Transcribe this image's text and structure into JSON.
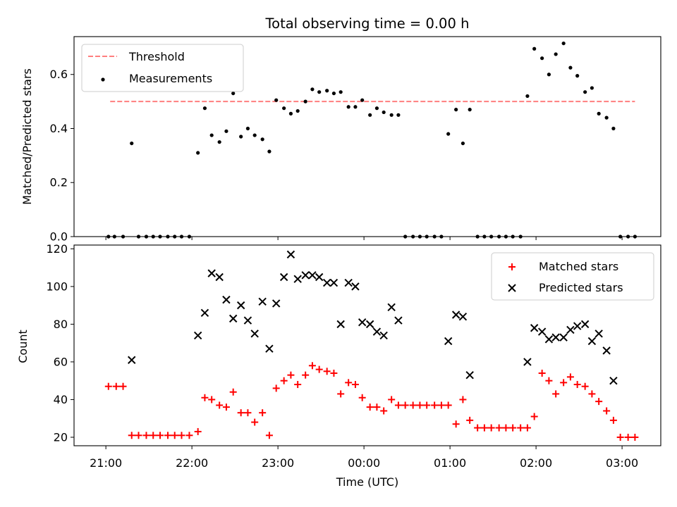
{
  "chart_data": [
    {
      "type": "scatter",
      "title": "Total observing time = 0.00 h",
      "xlabel": "",
      "ylabel": "Matched/Predicted stars",
      "ylim": [
        0,
        0.74
      ],
      "yticks": [
        0.0,
        0.2,
        0.4,
        0.6
      ],
      "ytick_labels": [
        "0.0",
        "0.2",
        "0.4",
        "0.6"
      ],
      "legend_position": "top-left",
      "threshold": {
        "name": "Threshold",
        "value": 0.5,
        "x_start": 21.05,
        "x_end": 27.15,
        "color": "#ff7f7f"
      },
      "series": [
        {
          "name": "Measurements",
          "color": "#000000",
          "x": [
            21.03,
            21.1,
            21.2,
            21.3,
            21.38,
            21.47,
            21.55,
            21.63,
            21.72,
            21.8,
            21.88,
            21.97,
            22.07,
            22.15,
            22.23,
            22.32,
            22.4,
            22.48,
            22.57,
            22.65,
            22.73,
            22.82,
            22.9,
            22.98,
            23.07,
            23.15,
            23.23,
            23.32,
            23.4,
            23.48,
            23.57,
            23.65,
            23.73,
            23.82,
            23.9,
            23.98,
            24.07,
            24.15,
            24.23,
            24.32,
            24.4,
            24.48,
            24.57,
            24.65,
            24.73,
            24.82,
            24.9,
            24.98,
            25.07,
            25.15,
            25.23,
            25.32,
            25.4,
            25.48,
            25.57,
            25.65,
            25.73,
            25.82,
            25.9,
            25.98,
            26.07,
            26.15,
            26.23,
            26.32,
            26.4,
            26.48,
            26.57,
            26.65,
            26.73,
            26.82,
            26.9,
            26.98,
            27.07,
            27.15
          ],
          "y": [
            0,
            0,
            0,
            0.345,
            0,
            0,
            0,
            0,
            0,
            0,
            0,
            0,
            0.31,
            0.475,
            0.375,
            0.35,
            0.39,
            0.53,
            0.37,
            0.4,
            0.375,
            0.36,
            0.315,
            0.505,
            0.475,
            0.455,
            0.465,
            0.5,
            0.545,
            0.535,
            0.54,
            0.53,
            0.535,
            0.48,
            0.48,
            0.505,
            0.45,
            0.475,
            0.46,
            0.45,
            0.45,
            0,
            0,
            0,
            0,
            0,
            0,
            0.38,
            0.47,
            0.345,
            0.47,
            0,
            0,
            0,
            0,
            0,
            0,
            0,
            0.52,
            0.695,
            0.66,
            0.6,
            0.675,
            0.715,
            0.625,
            0.595,
            0.535,
            0.55,
            0.455,
            0.44,
            0.4,
            0,
            0,
            0
          ]
        }
      ],
      "xticks": [
        21,
        22,
        23,
        24,
        25,
        26,
        27
      ]
    },
    {
      "type": "scatter",
      "title": "",
      "xlabel": "Time (UTC)",
      "ylabel": "Count",
      "xlim": [
        20.63,
        27.45
      ],
      "ylim": [
        15.5,
        122
      ],
      "yticks": [
        20,
        40,
        60,
        80,
        100,
        120
      ],
      "ytick_labels": [
        "20",
        "40",
        "60",
        "80",
        "100",
        "120"
      ],
      "xticks": [
        21,
        22,
        23,
        24,
        25,
        26,
        27
      ],
      "xtick_labels": [
        "21:00",
        "22:00",
        "23:00",
        "00:00",
        "01:00",
        "02:00",
        "03:00"
      ],
      "legend_position": "top-right",
      "series": [
        {
          "name": "Matched stars",
          "color": "#ff0000",
          "marker": "plus",
          "x": [
            21.03,
            21.12,
            21.2,
            21.3,
            21.38,
            21.47,
            21.55,
            21.63,
            21.72,
            21.8,
            21.88,
            21.97,
            22.07,
            22.15,
            22.23,
            22.32,
            22.4,
            22.48,
            22.57,
            22.65,
            22.73,
            22.82,
            22.9,
            22.98,
            23.07,
            23.15,
            23.23,
            23.32,
            23.4,
            23.48,
            23.57,
            23.65,
            23.73,
            23.82,
            23.9,
            23.98,
            24.07,
            24.15,
            24.23,
            24.32,
            24.4,
            24.48,
            24.57,
            24.65,
            24.73,
            24.82,
            24.9,
            24.98,
            25.07,
            25.15,
            25.23,
            25.32,
            25.4,
            25.48,
            25.57,
            25.65,
            25.73,
            25.82,
            25.9,
            25.98,
            26.07,
            26.15,
            26.23,
            26.32,
            26.4,
            26.48,
            26.57,
            26.65,
            26.73,
            26.82,
            26.9,
            26.98,
            27.07,
            27.15
          ],
          "y": [
            47,
            47,
            47,
            21,
            21,
            21,
            21,
            21,
            21,
            21,
            21,
            21,
            23,
            41,
            40,
            37,
            36,
            44,
            33,
            33,
            28,
            33,
            21,
            46,
            50,
            53,
            48,
            53,
            58,
            56,
            55,
            54,
            43,
            49,
            48,
            41,
            36,
            36,
            34,
            40,
            37,
            37,
            37,
            37,
            37,
            37,
            37,
            37,
            27,
            40,
            29,
            25,
            25,
            25,
            25,
            25,
            25,
            25,
            25,
            31,
            54,
            50,
            43,
            49,
            52,
            48,
            47,
            43,
            39,
            34,
            29,
            20,
            20,
            20
          ]
        },
        {
          "name": "Predicted stars",
          "color": "#000000",
          "marker": "x",
          "x": [
            21.3,
            22.07,
            22.15,
            22.23,
            22.32,
            22.4,
            22.48,
            22.57,
            22.65,
            22.73,
            22.82,
            22.9,
            22.98,
            23.07,
            23.15,
            23.23,
            23.32,
            23.4,
            23.48,
            23.57,
            23.65,
            23.73,
            23.82,
            23.9,
            23.98,
            24.07,
            24.15,
            24.23,
            24.32,
            24.4,
            24.98,
            25.07,
            25.15,
            25.23,
            25.9,
            25.98,
            26.07,
            26.15,
            26.23,
            26.32,
            26.4,
            26.48,
            26.57,
            26.65,
            26.73,
            26.82,
            26.9
          ],
          "y": [
            61,
            74,
            86,
            107,
            105,
            93,
            83,
            90,
            82,
            75,
            92,
            67,
            91,
            105,
            117,
            104,
            106,
            106,
            105,
            102,
            102,
            80,
            102,
            100,
            81,
            80,
            76,
            74,
            89,
            82,
            71,
            85,
            84,
            53,
            60,
            78,
            76,
            72,
            73,
            73,
            77,
            79,
            80,
            71,
            75,
            66,
            50
          ]
        }
      ]
    }
  ]
}
